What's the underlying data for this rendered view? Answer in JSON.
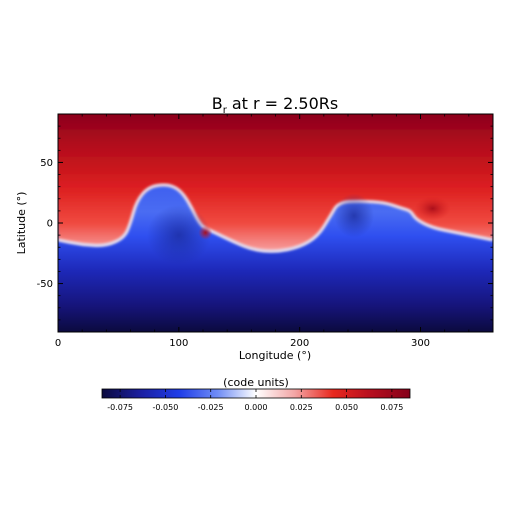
{
  "chart_data": {
    "type": "heatmap",
    "title": "B",
    "title_sub": "r",
    "title_rest": "at r = 2.50Rs",
    "xlabel": "Longitude (°)",
    "ylabel": "Latitude (°)",
    "xlim": [
      0,
      360
    ],
    "ylim": [
      -90,
      90
    ],
    "xticks": [
      "0",
      "100",
      "200",
      "300"
    ],
    "xtick_values": [
      0,
      100,
      200,
      300
    ],
    "yticks": [
      "50",
      "0",
      "-50"
    ],
    "ytick_values": [
      50,
      0,
      -50
    ],
    "colorbar": {
      "label": "(code units)",
      "range": [
        -0.085,
        0.085
      ],
      "ticks": [
        "-0.075",
        "-0.050",
        "-0.025",
        "0.000",
        "0.025",
        "0.050",
        "0.075"
      ],
      "tick_values": [
        -0.075,
        -0.05,
        -0.025,
        0,
        0.025,
        0.05,
        0.075
      ],
      "colormap": [
        "#0b0a3e",
        "#1b1fa0",
        "#1f3de8",
        "#6f8cf5",
        "#ffffff",
        "#f3a6a6",
        "#e8281e",
        "#b50e1e",
        "#850019"
      ],
      "orientation": "horizontal",
      "placement": "bottom"
    },
    "neutral_line_lat": [
      [
        0,
        -14
      ],
      [
        20,
        -18
      ],
      [
        40,
        -19
      ],
      [
        55,
        -12
      ],
      [
        60,
        0
      ],
      [
        65,
        18
      ],
      [
        75,
        30
      ],
      [
        90,
        32
      ],
      [
        100,
        28
      ],
      [
        108,
        18
      ],
      [
        118,
        -3
      ],
      [
        128,
        -7
      ],
      [
        140,
        -13
      ],
      [
        160,
        -22
      ],
      [
        180,
        -24
      ],
      [
        200,
        -20
      ],
      [
        215,
        -11
      ],
      [
        225,
        5
      ],
      [
        232,
        17
      ],
      [
        250,
        18
      ],
      [
        270,
        17
      ],
      [
        285,
        12
      ],
      [
        292,
        10
      ],
      [
        296,
        3
      ],
      [
        310,
        -4
      ],
      [
        330,
        -8
      ],
      [
        350,
        -12
      ],
      [
        360,
        -14
      ]
    ],
    "features": [
      {
        "lon": 100,
        "lat": -10,
        "value": -0.07,
        "type": "negative core"
      },
      {
        "lon": 122,
        "lat": -8,
        "value": 0.06,
        "type": "positive spot"
      },
      {
        "lon": 245,
        "lat": 6,
        "value": -0.07,
        "type": "negative core"
      },
      {
        "lon": 310,
        "lat": 12,
        "value": 0.085,
        "type": "positive spot"
      }
    ],
    "north_value": 0.075,
    "south_value": -0.085
  }
}
